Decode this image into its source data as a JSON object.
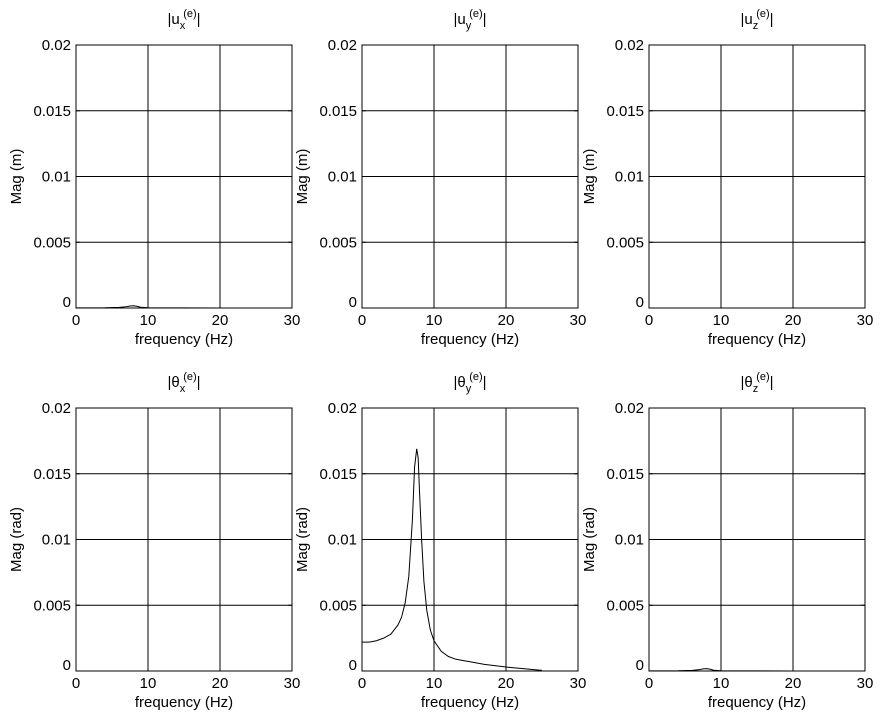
{
  "figure": {
    "layout": "2x3 subplot grid",
    "line_color": "#000000",
    "grid_color": "#000000",
    "background": "#ffffff"
  },
  "chart_data": [
    {
      "type": "line",
      "title_base": "u",
      "title_sub": "x",
      "title_sup": "(e)",
      "xlabel": "frequency (Hz)",
      "ylabel": "Mag (m)",
      "xlim": [
        0,
        30
      ],
      "ylim": [
        0,
        0.02
      ],
      "xticks": [
        0,
        10,
        20,
        30
      ],
      "yticks": [
        0,
        0.005,
        0.01,
        0.015,
        0.02
      ],
      "xtick_labels": [
        "0",
        "10",
        "20",
        "30"
      ],
      "ytick_labels": [
        "0",
        "0.005",
        "0.01",
        "0.015",
        "0.02"
      ],
      "grid": true,
      "series": [
        {
          "x": [
            0,
            4,
            6,
            7,
            7.5,
            8,
            8.5,
            9,
            10,
            12,
            15,
            20,
            25
          ],
          "y": [
            1e-05,
            2e-05,
            5e-05,
            0.0001,
            0.00015,
            0.00017,
            0.00012,
            6e-05,
            2e-05,
            1e-05,
            5e-06,
            3e-06,
            2e-06
          ]
        }
      ]
    },
    {
      "type": "line",
      "title_base": "u",
      "title_sub": "y",
      "title_sup": "(e)",
      "xlabel": "frequency (Hz)",
      "ylabel": "Mag (m)",
      "xlim": [
        0,
        30
      ],
      "ylim": [
        0,
        0.02
      ],
      "xticks": [
        0,
        10,
        20,
        30
      ],
      "yticks": [
        0,
        0.005,
        0.01,
        0.015,
        0.02
      ],
      "xtick_labels": [
        "0",
        "10",
        "20",
        "30"
      ],
      "ytick_labels": [
        "0",
        "0.005",
        "0.01",
        "0.015",
        "0.02"
      ],
      "grid": true,
      "series": [
        {
          "x": [
            0,
            5,
            10,
            15,
            20,
            25
          ],
          "y": [
            2e-06,
            2e-06,
            2e-06,
            2e-06,
            2e-06,
            2e-06
          ]
        }
      ]
    },
    {
      "type": "line",
      "title_base": "u",
      "title_sub": "z",
      "title_sup": "(e)",
      "xlabel": "frequency (Hz)",
      "ylabel": "Mag (m)",
      "xlim": [
        0,
        30
      ],
      "ylim": [
        0,
        0.02
      ],
      "xticks": [
        0,
        10,
        20,
        30
      ],
      "yticks": [
        0,
        0.005,
        0.01,
        0.015,
        0.02
      ],
      "xtick_labels": [
        "0",
        "10",
        "20",
        "30"
      ],
      "ytick_labels": [
        "0",
        "0.005",
        "0.01",
        "0.015",
        "0.02"
      ],
      "grid": true,
      "series": [
        {
          "x": [
            0,
            5,
            10,
            15,
            20,
            25
          ],
          "y": [
            2e-06,
            2e-06,
            2e-06,
            2e-06,
            2e-06,
            2e-06
          ]
        }
      ]
    },
    {
      "type": "line",
      "title_base": "θ",
      "title_sub": "x",
      "title_sup": "(e)",
      "xlabel": "frequency (Hz)",
      "ylabel": "Mag (rad)",
      "xlim": [
        0,
        30
      ],
      "ylim": [
        0,
        0.02
      ],
      "xticks": [
        0,
        10,
        20,
        30
      ],
      "yticks": [
        0,
        0.005,
        0.01,
        0.015,
        0.02
      ],
      "xtick_labels": [
        "0",
        "10",
        "20",
        "30"
      ],
      "ytick_labels": [
        "0",
        "0.005",
        "0.01",
        "0.015",
        "0.02"
      ],
      "grid": true,
      "series": [
        {
          "x": [
            0,
            5,
            10,
            15,
            20,
            25
          ],
          "y": [
            2e-06,
            2e-06,
            2e-06,
            2e-06,
            2e-06,
            2e-06
          ]
        }
      ]
    },
    {
      "type": "line",
      "title_base": "θ",
      "title_sub": "y",
      "title_sup": "(e)",
      "xlabel": "frequency (Hz)",
      "ylabel": "Mag (rad)",
      "xlim": [
        0,
        30
      ],
      "ylim": [
        0,
        0.02
      ],
      "xticks": [
        0,
        10,
        20,
        30
      ],
      "yticks": [
        0,
        0.005,
        0.01,
        0.015,
        0.02
      ],
      "xtick_labels": [
        "0",
        "10",
        "20",
        "30"
      ],
      "ytick_labels": [
        "0",
        "0.005",
        "0.01",
        "0.015",
        "0.02"
      ],
      "grid": true,
      "series": [
        {
          "x": [
            0,
            1,
            2,
            3,
            4,
            5,
            5.5,
            6,
            6.5,
            7,
            7.3,
            7.6,
            7.8,
            8,
            8.3,
            8.6,
            9,
            9.5,
            10,
            11,
            12,
            13,
            14,
            15,
            17,
            20,
            22,
            25
          ],
          "y": [
            0.0022,
            0.0022,
            0.0023,
            0.0025,
            0.0028,
            0.0035,
            0.0041,
            0.0052,
            0.0072,
            0.0115,
            0.0155,
            0.0169,
            0.0162,
            0.0135,
            0.0098,
            0.0068,
            0.0046,
            0.0031,
            0.0023,
            0.0015,
            0.0011,
            0.0009,
            0.0008,
            0.0007,
            0.0005,
            0.0003,
            0.0002,
            5e-05
          ]
        }
      ]
    },
    {
      "type": "line",
      "title_base": "θ",
      "title_sub": "z",
      "title_sup": "(e)",
      "xlabel": "frequency (Hz)",
      "ylabel": "Mag (rad)",
      "xlim": [
        0,
        30
      ],
      "ylim": [
        0,
        0.02
      ],
      "xticks": [
        0,
        10,
        20,
        30
      ],
      "yticks": [
        0,
        0.005,
        0.01,
        0.015,
        0.02
      ],
      "xtick_labels": [
        "0",
        "10",
        "20",
        "30"
      ],
      "ytick_labels": [
        "0",
        "0.005",
        "0.01",
        "0.015",
        "0.02"
      ],
      "grid": true,
      "series": [
        {
          "x": [
            0,
            4,
            6,
            7,
            7.5,
            8,
            8.5,
            9,
            10,
            12,
            15,
            20,
            25
          ],
          "y": [
            1e-05,
            2e-05,
            5e-05,
            0.0001,
            0.00016,
            0.00018,
            0.00013,
            6e-05,
            2e-05,
            1e-05,
            5e-06,
            3e-06,
            2e-06
          ]
        }
      ]
    }
  ]
}
